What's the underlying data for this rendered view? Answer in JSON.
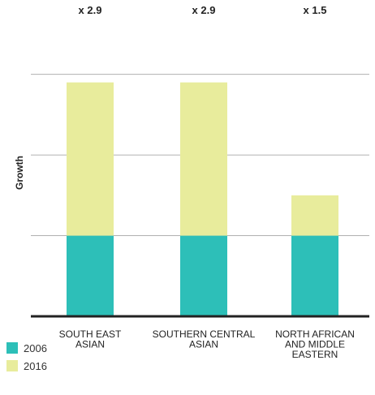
{
  "colors": {
    "s2006": "#2dbfb8",
    "s2016": "#e8ec9c",
    "grid": "#b0b0b0",
    "baseline": "#222222",
    "text": "#222222"
  },
  "chart_data": {
    "type": "bar",
    "stacked": true,
    "ylabel": "Growth",
    "xlabel": "",
    "title": "",
    "categories": [
      [
        "SOUTH EAST",
        "ASIAN"
      ],
      [
        "SOUTHERN CENTRAL",
        "ASIAN"
      ],
      [
        "NORTH AFRICAN",
        "AND MIDDLE",
        "EASTERN"
      ]
    ],
    "annotations": [
      "x 2.9",
      "x 2.9",
      "x 1.5"
    ],
    "series": [
      {
        "name": "2006",
        "values": [
          1,
          1,
          1
        ]
      },
      {
        "name": "2016",
        "values": [
          1.9,
          1.9,
          0.5
        ]
      }
    ],
    "ylim": [
      0,
      3.6
    ],
    "grid": true,
    "y_tick_labels_shown": false,
    "legend_position": "bottom-left"
  }
}
